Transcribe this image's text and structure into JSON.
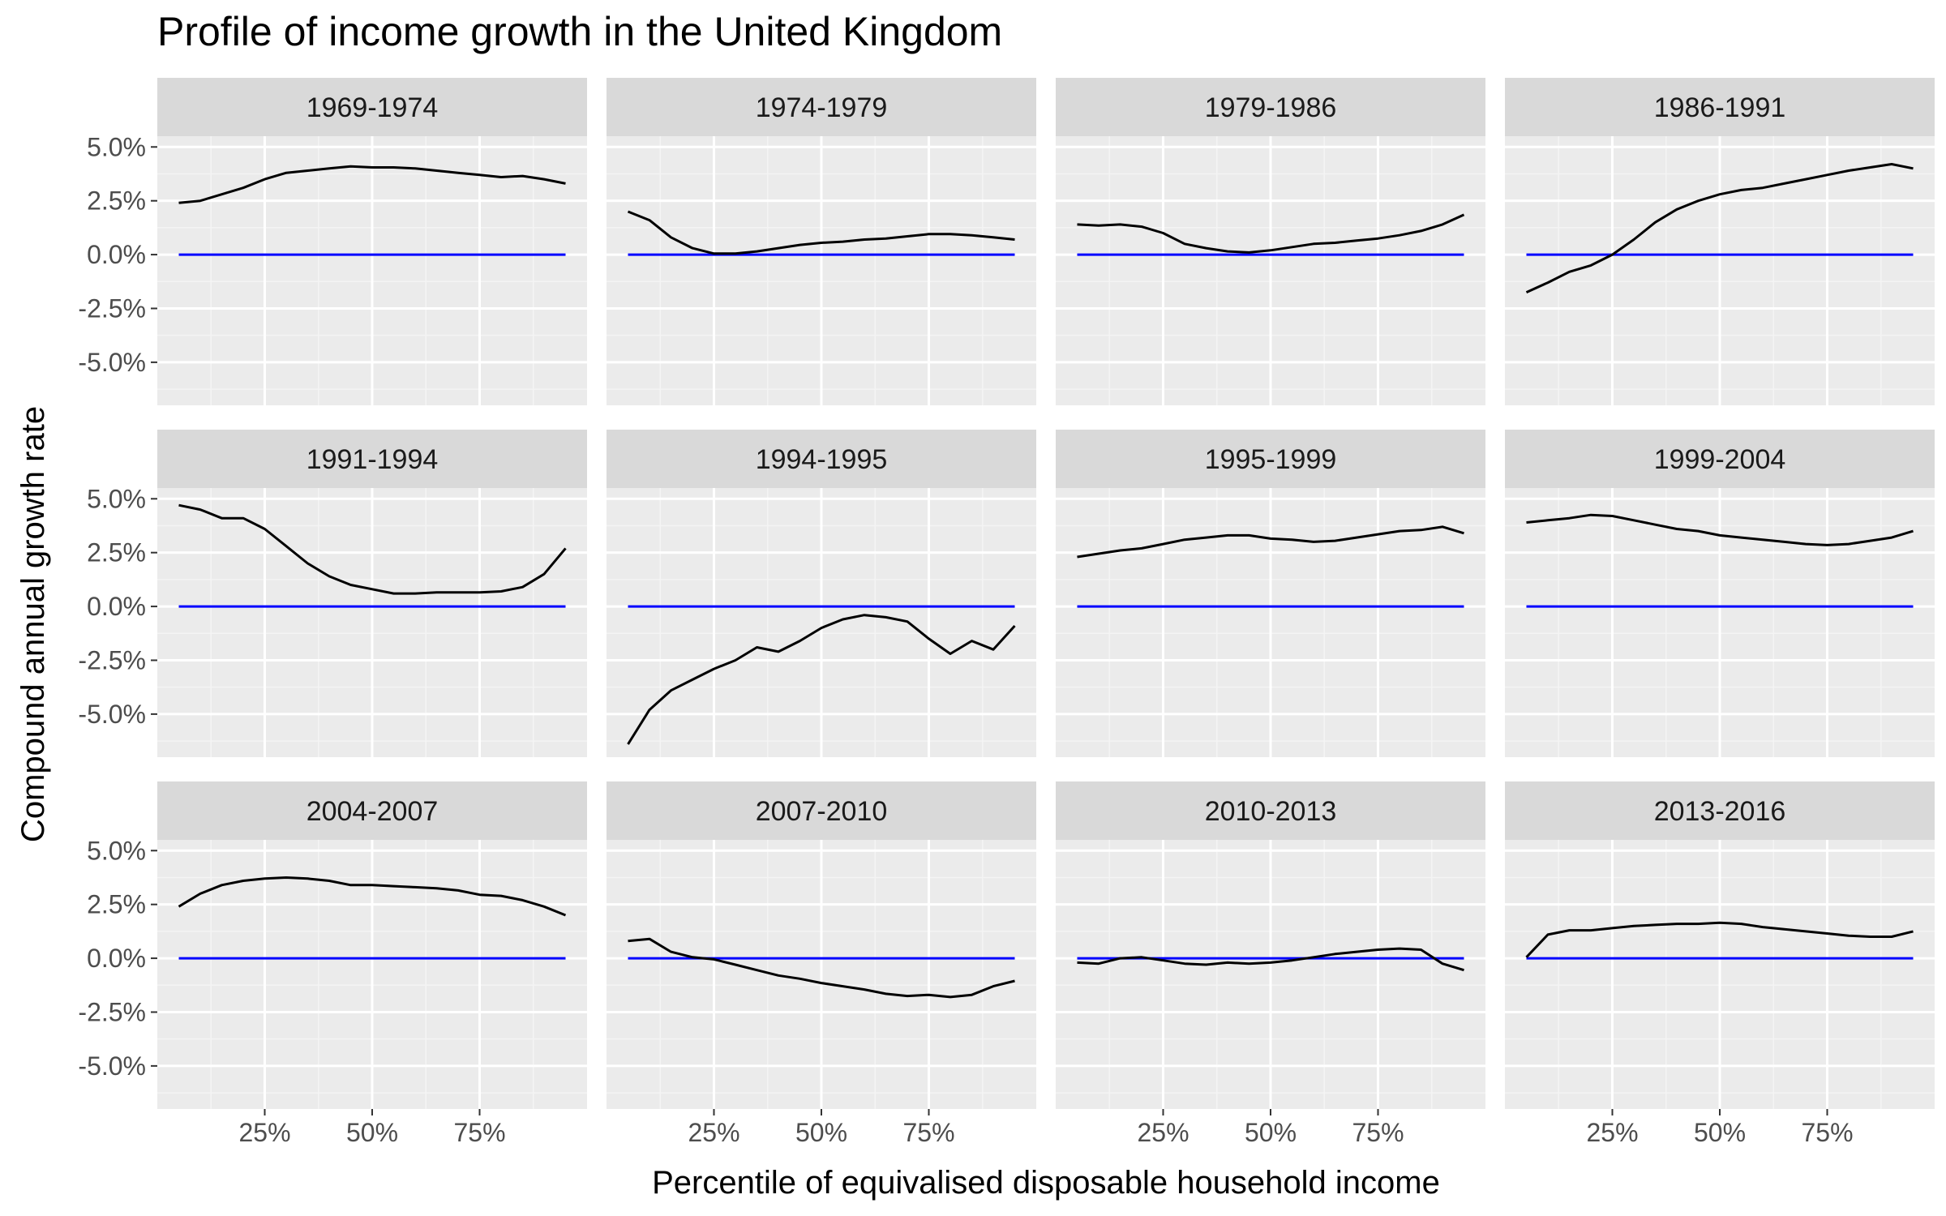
{
  "chart_data": {
    "type": "line",
    "title": "Profile of income growth in the United Kingdom",
    "xlabel": "Percentile of equivalised disposable household income",
    "ylabel": "Compound annual growth rate",
    "xlim": [
      0,
      1
    ],
    "ylim": [
      -7,
      5.5
    ],
    "x_ticks": [
      0.25,
      0.5,
      0.75
    ],
    "x_tick_labels": [
      "25%",
      "50%",
      "75%"
    ],
    "y_ticks": [
      5,
      2.5,
      0,
      -2.5,
      -5
    ],
    "y_tick_labels": [
      "5.0%",
      "2.5%",
      "0.0%",
      "-2.5%",
      "-5.0%"
    ],
    "grid": true,
    "layout": "facet grid 3 rows x 4 columns",
    "reference_line": {
      "y": 0,
      "color": "#0000ff"
    },
    "line_color": "#000000",
    "panels": [
      {
        "label": "1969-1974",
        "x": [
          0.05,
          0.1,
          0.15,
          0.2,
          0.25,
          0.3,
          0.35,
          0.4,
          0.45,
          0.5,
          0.55,
          0.6,
          0.65,
          0.7,
          0.75,
          0.8,
          0.85,
          0.9,
          0.95
        ],
        "y": [
          2.4,
          2.5,
          2.8,
          3.1,
          3.5,
          3.8,
          3.9,
          4.0,
          4.1,
          4.05,
          4.05,
          4.0,
          3.9,
          3.8,
          3.7,
          3.6,
          3.65,
          3.5,
          3.3
        ]
      },
      {
        "label": "1974-1979",
        "x": [
          0.05,
          0.1,
          0.15,
          0.2,
          0.25,
          0.3,
          0.35,
          0.4,
          0.45,
          0.5,
          0.55,
          0.6,
          0.65,
          0.7,
          0.75,
          0.8,
          0.85,
          0.9,
          0.95
        ],
        "y": [
          2.0,
          1.6,
          0.8,
          0.3,
          0.05,
          0.05,
          0.15,
          0.3,
          0.45,
          0.55,
          0.6,
          0.7,
          0.75,
          0.85,
          0.95,
          0.95,
          0.9,
          0.8,
          0.7
        ]
      },
      {
        "label": "1979-1986",
        "x": [
          0.05,
          0.1,
          0.15,
          0.2,
          0.25,
          0.3,
          0.35,
          0.4,
          0.45,
          0.5,
          0.55,
          0.6,
          0.65,
          0.7,
          0.75,
          0.8,
          0.85,
          0.9,
          0.95
        ],
        "y": [
          1.4,
          1.35,
          1.4,
          1.3,
          1.0,
          0.5,
          0.3,
          0.15,
          0.1,
          0.2,
          0.35,
          0.5,
          0.55,
          0.65,
          0.75,
          0.9,
          1.1,
          1.4,
          1.85
        ]
      },
      {
        "label": "1986-1991",
        "x": [
          0.05,
          0.1,
          0.15,
          0.2,
          0.25,
          0.3,
          0.35,
          0.4,
          0.45,
          0.5,
          0.55,
          0.6,
          0.65,
          0.7,
          0.75,
          0.8,
          0.85,
          0.9,
          0.95
        ],
        "y": [
          -1.75,
          -1.3,
          -0.8,
          -0.5,
          0.0,
          0.7,
          1.5,
          2.1,
          2.5,
          2.8,
          3.0,
          3.1,
          3.3,
          3.5,
          3.7,
          3.9,
          4.05,
          4.2,
          4.0
        ]
      },
      {
        "label": "1991-1994",
        "x": [
          0.05,
          0.1,
          0.15,
          0.2,
          0.25,
          0.3,
          0.35,
          0.4,
          0.45,
          0.5,
          0.55,
          0.6,
          0.65,
          0.7,
          0.75,
          0.8,
          0.85,
          0.9,
          0.95
        ],
        "y": [
          4.7,
          4.5,
          4.1,
          4.1,
          3.6,
          2.8,
          2.0,
          1.4,
          1.0,
          0.8,
          0.6,
          0.6,
          0.65,
          0.65,
          0.65,
          0.7,
          0.9,
          1.5,
          2.7
        ]
      },
      {
        "label": "1994-1995",
        "x": [
          0.05,
          0.1,
          0.15,
          0.2,
          0.25,
          0.3,
          0.35,
          0.4,
          0.45,
          0.5,
          0.55,
          0.6,
          0.65,
          0.7,
          0.75,
          0.8,
          0.85,
          0.9,
          0.95
        ],
        "y": [
          -6.4,
          -4.8,
          -3.9,
          -3.4,
          -2.9,
          -2.5,
          -1.9,
          -2.1,
          -1.6,
          -1.0,
          -0.6,
          -0.4,
          -0.5,
          -0.7,
          -1.5,
          -2.2,
          -1.6,
          -2.0,
          -0.9
        ]
      },
      {
        "label": "1995-1999",
        "x": [
          0.05,
          0.1,
          0.15,
          0.2,
          0.25,
          0.3,
          0.35,
          0.4,
          0.45,
          0.5,
          0.55,
          0.6,
          0.65,
          0.7,
          0.75,
          0.8,
          0.85,
          0.9,
          0.95
        ],
        "y": [
          2.3,
          2.45,
          2.6,
          2.7,
          2.9,
          3.1,
          3.2,
          3.3,
          3.3,
          3.15,
          3.1,
          3.0,
          3.05,
          3.2,
          3.35,
          3.5,
          3.55,
          3.7,
          3.4
        ]
      },
      {
        "label": "1999-2004",
        "x": [
          0.05,
          0.1,
          0.15,
          0.2,
          0.25,
          0.3,
          0.35,
          0.4,
          0.45,
          0.5,
          0.55,
          0.6,
          0.65,
          0.7,
          0.75,
          0.8,
          0.85,
          0.9,
          0.95
        ],
        "y": [
          3.9,
          4.0,
          4.1,
          4.25,
          4.2,
          4.0,
          3.8,
          3.6,
          3.5,
          3.3,
          3.2,
          3.1,
          3.0,
          2.9,
          2.85,
          2.9,
          3.05,
          3.2,
          3.5
        ]
      },
      {
        "label": "2004-2007",
        "x": [
          0.05,
          0.1,
          0.15,
          0.2,
          0.25,
          0.3,
          0.35,
          0.4,
          0.45,
          0.5,
          0.55,
          0.6,
          0.65,
          0.7,
          0.75,
          0.8,
          0.85,
          0.9,
          0.95
        ],
        "y": [
          2.4,
          3.0,
          3.4,
          3.6,
          3.7,
          3.75,
          3.7,
          3.6,
          3.4,
          3.4,
          3.35,
          3.3,
          3.25,
          3.15,
          2.95,
          2.9,
          2.7,
          2.4,
          2.0
        ]
      },
      {
        "label": "2007-2010",
        "x": [
          0.05,
          0.1,
          0.15,
          0.2,
          0.25,
          0.3,
          0.35,
          0.4,
          0.45,
          0.5,
          0.55,
          0.6,
          0.65,
          0.7,
          0.75,
          0.8,
          0.85,
          0.9,
          0.95
        ],
        "y": [
          0.8,
          0.9,
          0.3,
          0.05,
          -0.05,
          -0.3,
          -0.55,
          -0.8,
          -0.95,
          -1.15,
          -1.3,
          -1.45,
          -1.65,
          -1.75,
          -1.7,
          -1.8,
          -1.7,
          -1.3,
          -1.05
        ]
      },
      {
        "label": "2010-2013",
        "x": [
          0.05,
          0.1,
          0.15,
          0.2,
          0.25,
          0.3,
          0.35,
          0.4,
          0.45,
          0.5,
          0.55,
          0.6,
          0.65,
          0.7,
          0.75,
          0.8,
          0.85,
          0.9,
          0.95
        ],
        "y": [
          -0.2,
          -0.25,
          0.0,
          0.05,
          -0.1,
          -0.25,
          -0.3,
          -0.2,
          -0.25,
          -0.2,
          -0.1,
          0.05,
          0.2,
          0.3,
          0.4,
          0.45,
          0.4,
          -0.25,
          -0.55
        ]
      },
      {
        "label": "2013-2016",
        "x": [
          0.05,
          0.1,
          0.15,
          0.2,
          0.25,
          0.3,
          0.35,
          0.4,
          0.45,
          0.5,
          0.55,
          0.6,
          0.65,
          0.7,
          0.75,
          0.8,
          0.85,
          0.9,
          0.95
        ],
        "y": [
          0.05,
          1.1,
          1.3,
          1.3,
          1.4,
          1.5,
          1.55,
          1.6,
          1.6,
          1.65,
          1.6,
          1.45,
          1.35,
          1.25,
          1.15,
          1.05,
          1.0,
          1.0,
          1.25
        ]
      }
    ]
  }
}
